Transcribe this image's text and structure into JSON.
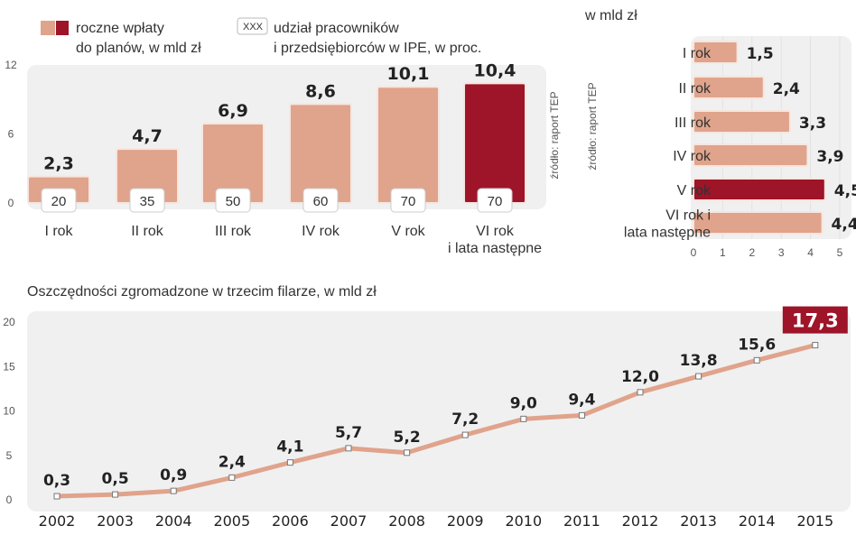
{
  "colors": {
    "bar": "#e0a38b",
    "highlight": "#9e1428",
    "panel": "#f0f0f0",
    "line": "#e0a38b"
  },
  "chart_data": [
    {
      "type": "bar",
      "legend": {
        "bar_label_1": "roczne wpłaty",
        "bar_label_2": "do planów, w mld zł",
        "box_sample": "XXX",
        "box_label_1": "udział pracowników",
        "box_label_2": "i przedsiębiorców w IPE, w proc."
      },
      "source": "źródło: raport TEP",
      "categories": [
        "I rok",
        "II rok",
        "III rok",
        "IV rok",
        "V rok",
        "VI rok\ni lata następne"
      ],
      "values": [
        2.3,
        4.7,
        6.9,
        8.6,
        10.1,
        10.4
      ],
      "value_labels": [
        "2,3",
        "4,7",
        "6,9",
        "8,6",
        "10,1",
        "10,4"
      ],
      "shares": [
        "20",
        "35",
        "50",
        "60",
        "70",
        "70"
      ],
      "highlight_index": 5,
      "ylim": [
        0,
        12
      ],
      "yticks": [
        "0",
        "6",
        "12"
      ]
    },
    {
      "type": "bar",
      "orientation": "horizontal",
      "subtitle": "w mld zł",
      "source": "źródło: raport TEP",
      "categories": [
        "I rok",
        "II rok",
        "III rok",
        "IV rok",
        "V rok",
        "VI rok i\nlata następne"
      ],
      "values": [
        1.5,
        2.4,
        3.3,
        3.9,
        4.5,
        4.4
      ],
      "value_labels": [
        "1,5",
        "2,4",
        "3,3",
        "3,9",
        "4,5",
        "4,4"
      ],
      "highlight_index": 4,
      "xlim": [
        0,
        5
      ],
      "xticks": [
        "0",
        "1",
        "2",
        "3",
        "4",
        "5"
      ],
      "grid": true
    },
    {
      "type": "line",
      "title": "Oszczędności zgromadzone w trzecim filarze, w mld zł",
      "x": [
        "2002",
        "2003",
        "2004",
        "2005",
        "2006",
        "2007",
        "2008",
        "2009",
        "2010",
        "2011",
        "2012",
        "2013",
        "2014",
        "2015"
      ],
      "values": [
        0.3,
        0.5,
        0.9,
        2.4,
        4.1,
        5.7,
        5.2,
        7.2,
        9.0,
        9.4,
        12.0,
        13.8,
        15.6,
        17.3
      ],
      "value_labels": [
        "0,3",
        "0,5",
        "0,9",
        "2,4",
        "4,1",
        "5,7",
        "5,2",
        "7,2",
        "9,0",
        "9,4",
        "12,0",
        "13,8",
        "15,6",
        "17,3"
      ],
      "highlight_index": 13,
      "ylim": [
        0,
        20
      ],
      "yticks": [
        "0",
        "5",
        "10",
        "15",
        "20"
      ]
    }
  ]
}
